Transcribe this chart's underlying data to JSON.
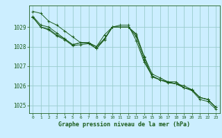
{
  "background_color": "#cceeff",
  "grid_color": "#99cccc",
  "line_color": "#1a5c1a",
  "xlabel": "Graphe pression niveau de la mer (hPa)",
  "xlabel_color": "#1a5c1a",
  "tick_color": "#1a5c1a",
  "ylim": [
    1024.6,
    1030.1
  ],
  "xlim": [
    -0.5,
    23.5
  ],
  "yticks": [
    1025,
    1026,
    1027,
    1028,
    1029
  ],
  "xticks": [
    0,
    1,
    2,
    3,
    4,
    5,
    6,
    7,
    8,
    9,
    10,
    11,
    12,
    13,
    14,
    15,
    16,
    17,
    18,
    19,
    20,
    21,
    22,
    23
  ],
  "series": [
    [
      1029.8,
      1029.7,
      1029.3,
      1029.1,
      1028.8,
      1028.5,
      1028.2,
      1028.2,
      1028.0,
      1028.6,
      1029.0,
      1029.1,
      1029.1,
      1028.3,
      1027.2,
      1026.5,
      1026.3,
      1026.2,
      1026.1,
      1026.0,
      1025.8,
      1025.4,
      1025.3,
      1024.9
    ],
    [
      1029.5,
      1029.0,
      1028.9,
      1028.6,
      1028.4,
      1028.1,
      1028.2,
      1028.2,
      1027.9,
      1028.4,
      1029.0,
      1029.0,
      1029.0,
      1028.6,
      1027.5,
      1026.6,
      1026.4,
      1026.2,
      1026.2,
      1025.9,
      1025.8,
      1025.4,
      1025.3,
      1024.9
    ],
    [
      1029.5,
      1029.0,
      1028.85,
      1028.55,
      1028.35,
      1028.05,
      1028.1,
      1028.15,
      1027.9,
      1028.35,
      1029.0,
      1029.0,
      1029.0,
      1028.65,
      1027.45,
      1026.45,
      1026.3,
      1026.15,
      1026.1,
      1025.9,
      1025.75,
      1025.3,
      1025.2,
      1024.8
    ],
    [
      1029.55,
      1029.1,
      1029.0,
      1028.7,
      1028.4,
      1028.1,
      1028.2,
      1028.2,
      1028.0,
      1028.4,
      1029.0,
      1029.0,
      1029.0,
      1028.5,
      1027.3,
      1026.5,
      1026.3,
      1026.2,
      1026.1,
      1025.9,
      1025.8,
      1025.4,
      1025.3,
      1024.9
    ]
  ]
}
